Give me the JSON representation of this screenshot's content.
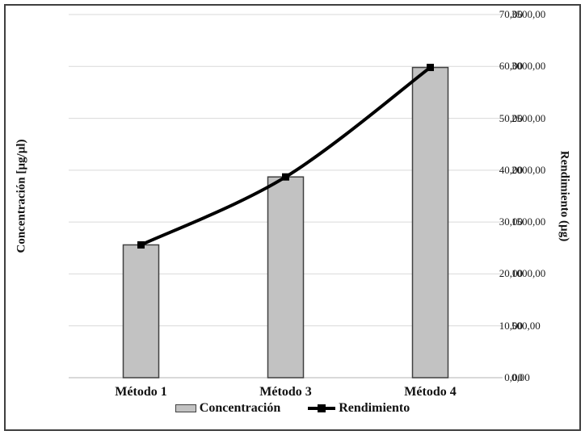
{
  "figure": {
    "background": "#ffffff",
    "border_color": "#3f3f3f"
  },
  "chart_data": {
    "type": "combo-bar-line",
    "title": "",
    "categories": [
      "Método 1",
      "Método 3",
      "Método 4"
    ],
    "series": [
      {
        "name": "Concentración",
        "type": "bar",
        "axis": "left",
        "values": [
          25.6,
          38.7,
          59.8
        ],
        "fill": "#c2c2c2",
        "stroke": "#404040"
      },
      {
        "name": "Rendimiento",
        "type": "line",
        "axis": "right",
        "values": [
          1280,
          1935,
          2990
        ],
        "color": "#000000",
        "marker": "square",
        "smooth": true
      }
    ],
    "left_axis": {
      "label": "Concentración [µg/µl)",
      "min": 0,
      "max": 70,
      "step": 10,
      "tick_labels": [
        "0,00",
        "10,00",
        "20,00",
        "30,00",
        "40,00",
        "50,00",
        "60,00",
        "70,00"
      ]
    },
    "right_axis": {
      "label": "Rendimiento (µg)",
      "min": 0,
      "max": 3500,
      "step": 500,
      "tick_labels": [
        "0,00",
        "500,00",
        "1000,00",
        "1500,00",
        "2000,00",
        "2500,00",
        "3000,00",
        "3500,00"
      ]
    },
    "grid": {
      "horizontal": true,
      "color": "#d9d9d9",
      "axis_line_color": "#b3b3b3"
    },
    "legend": {
      "position": "bottom",
      "entries": [
        "Concentración",
        "Rendimiento"
      ]
    }
  }
}
